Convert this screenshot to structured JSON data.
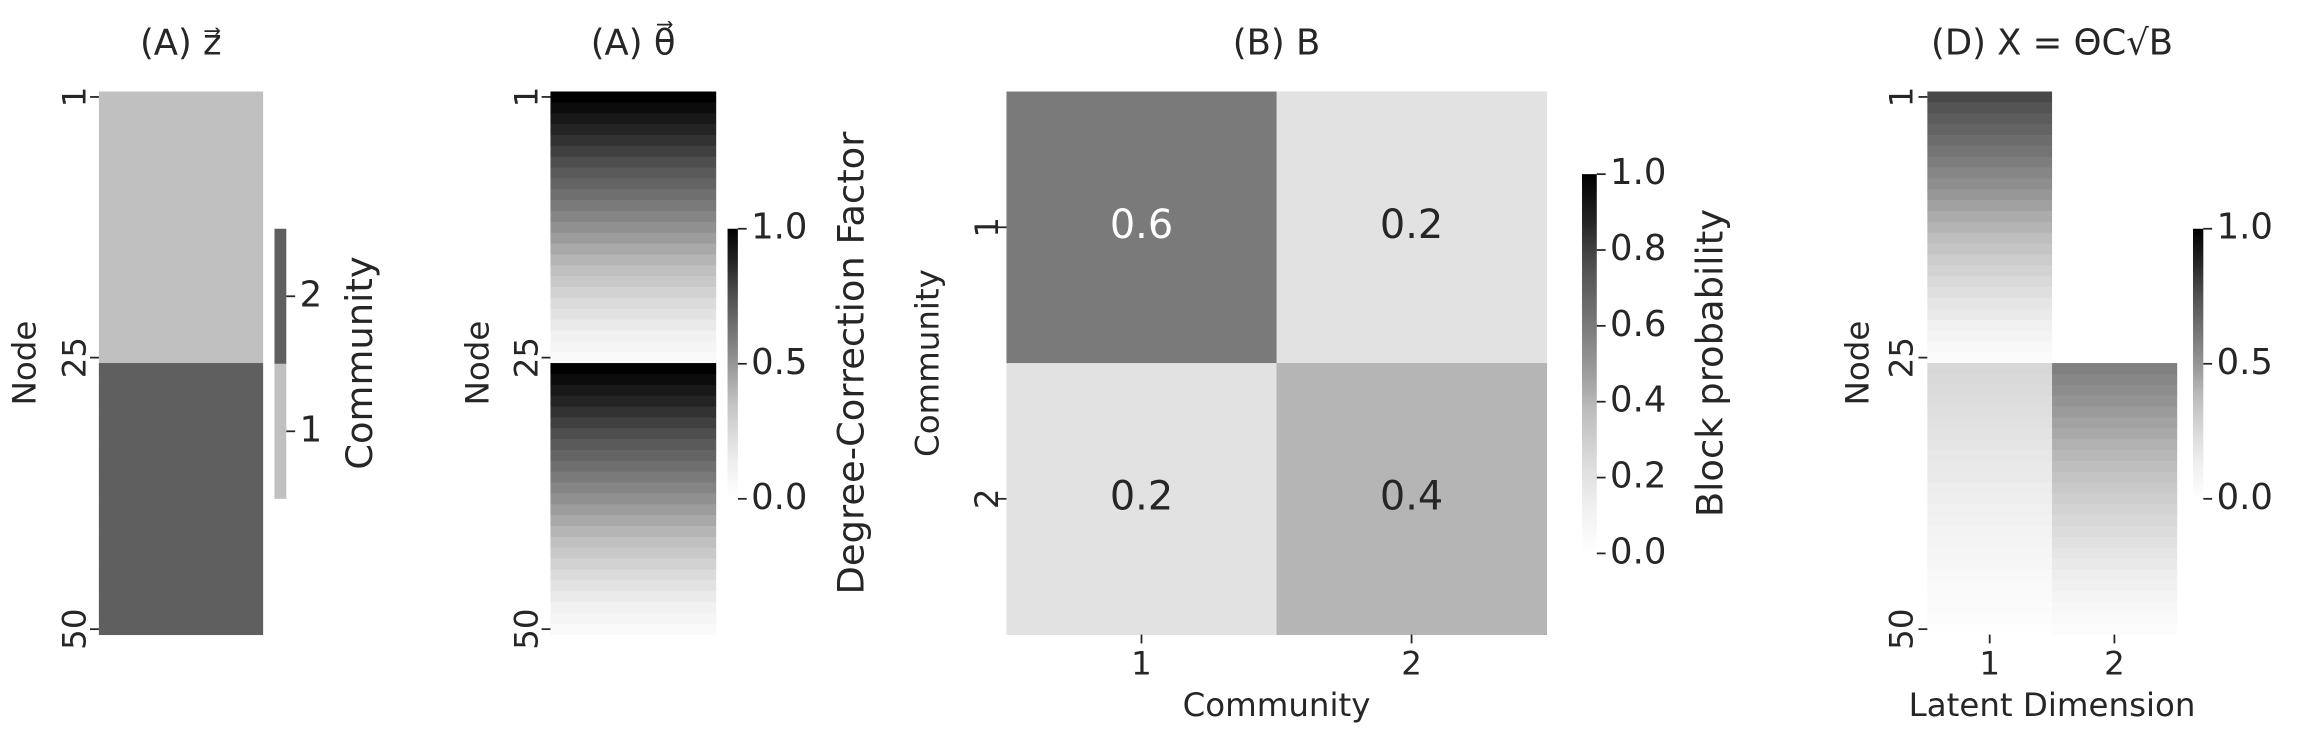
{
  "chart_data": [
    {
      "type": "heatmap",
      "title": "(A) z⃗",
      "ylabel": "Node",
      "colorbar_label": "Community",
      "cmap": "discrete",
      "colors": [
        "#c0c0c0",
        "#5f5f5f"
      ],
      "values": [
        1,
        1,
        1,
        1,
        1,
        1,
        1,
        1,
        1,
        1,
        1,
        1,
        1,
        1,
        1,
        1,
        1,
        1,
        1,
        1,
        1,
        1,
        1,
        1,
        1,
        2,
        2,
        2,
        2,
        2,
        2,
        2,
        2,
        2,
        2,
        2,
        2,
        2,
        2,
        2,
        2,
        2,
        2,
        2,
        2,
        2,
        2,
        2,
        2,
        2
      ],
      "ylim": [
        0.5,
        50.5
      ],
      "yticks": [
        1,
        25,
        50
      ],
      "clim": [
        0.5,
        2.5
      ],
      "cticks": [
        1,
        2
      ]
    },
    {
      "type": "heatmap",
      "title": "(A) θ⃗",
      "ylabel": "Node",
      "colorbar_label": "Degree-Correction Factor",
      "cmap": "Greys",
      "values": [
        1.0,
        0.96,
        0.92,
        0.88,
        0.84,
        0.8,
        0.76,
        0.72,
        0.68,
        0.64,
        0.6,
        0.56,
        0.52,
        0.48,
        0.44,
        0.4,
        0.36,
        0.32,
        0.28,
        0.24,
        0.2,
        0.16,
        0.12,
        0.08,
        0.04,
        1.0,
        0.96,
        0.92,
        0.88,
        0.84,
        0.8,
        0.76,
        0.72,
        0.68,
        0.64,
        0.6,
        0.56,
        0.52,
        0.48,
        0.44,
        0.4,
        0.36,
        0.32,
        0.28,
        0.24,
        0.2,
        0.16,
        0.12,
        0.08,
        0.04
      ],
      "ylim": [
        0.5,
        50.5
      ],
      "yticks": [
        1,
        25,
        50
      ],
      "clim": [
        0,
        1
      ],
      "cticks": [
        {
          "value": 0,
          "label": "0.0"
        },
        0.5,
        {
          "value": 1,
          "label": "1.0"
        }
      ]
    },
    {
      "type": "heatmap",
      "title": "(B) B",
      "xlabel": "Community",
      "ylabel": "Community",
      "colorbar_label": "Block probability",
      "cmap": "Greys",
      "x_categories": [
        "1",
        "2"
      ],
      "y_categories": [
        "1",
        "2"
      ],
      "values": [
        [
          0.6,
          0.2
        ],
        [
          0.2,
          0.4
        ]
      ],
      "annotate": true,
      "clim": [
        0,
        1
      ],
      "cticks": [
        {
          "value": 0,
          "label": "0.0"
        },
        0.2,
        0.4,
        0.6,
        0.8,
        {
          "value": 1,
          "label": "1.0"
        }
      ]
    },
    {
      "type": "heatmap",
      "title": "(D) X = ΘC√B",
      "xlabel": "Latent Dimension",
      "ylabel": "Node",
      "cmap": "Greys",
      "x_categories": [
        "1",
        "2"
      ],
      "values": [
        [
          0.775,
          0
        ],
        [
          0.744,
          0
        ],
        [
          0.713,
          0
        ],
        [
          0.682,
          0
        ],
        [
          0.651,
          0
        ],
        [
          0.62,
          0
        ],
        [
          0.589,
          0
        ],
        [
          0.558,
          0
        ],
        [
          0.527,
          0
        ],
        [
          0.496,
          0
        ],
        [
          0.465,
          0
        ],
        [
          0.434,
          0
        ],
        [
          0.403,
          0
        ],
        [
          0.372,
          0
        ],
        [
          0.341,
          0
        ],
        [
          0.31,
          0
        ],
        [
          0.279,
          0
        ],
        [
          0.248,
          0
        ],
        [
          0.217,
          0
        ],
        [
          0.186,
          0
        ],
        [
          0.155,
          0
        ],
        [
          0.124,
          0
        ],
        [
          0.093,
          0
        ],
        [
          0.062,
          0
        ],
        [
          0.031,
          0
        ],
        [
          0.258,
          0.577
        ],
        [
          0.248,
          0.554
        ],
        [
          0.237,
          0.531
        ],
        [
          0.227,
          0.508
        ],
        [
          0.217,
          0.485
        ],
        [
          0.206,
          0.462
        ],
        [
          0.196,
          0.439
        ],
        [
          0.186,
          0.415
        ],
        [
          0.175,
          0.392
        ],
        [
          0.165,
          0.369
        ],
        [
          0.155,
          0.346
        ],
        [
          0.144,
          0.323
        ],
        [
          0.134,
          0.3
        ],
        [
          0.124,
          0.277
        ],
        [
          0.114,
          0.254
        ],
        [
          0.103,
          0.231
        ],
        [
          0.093,
          0.208
        ],
        [
          0.083,
          0.185
        ],
        [
          0.072,
          0.162
        ],
        [
          0.062,
          0.138
        ],
        [
          0.052,
          0.115
        ],
        [
          0.041,
          0.092
        ],
        [
          0.031,
          0.069
        ],
        [
          0.021,
          0.046
        ],
        [
          0.01,
          0.023
        ]
      ],
      "ylim": [
        0.5,
        50.5
      ],
      "yticks": [
        1,
        25,
        50
      ],
      "clim": [
        0,
        1
      ],
      "cticks": [
        {
          "value": 0,
          "label": "0.0"
        },
        0.5,
        {
          "value": 1,
          "label": "1.0"
        }
      ]
    }
  ]
}
